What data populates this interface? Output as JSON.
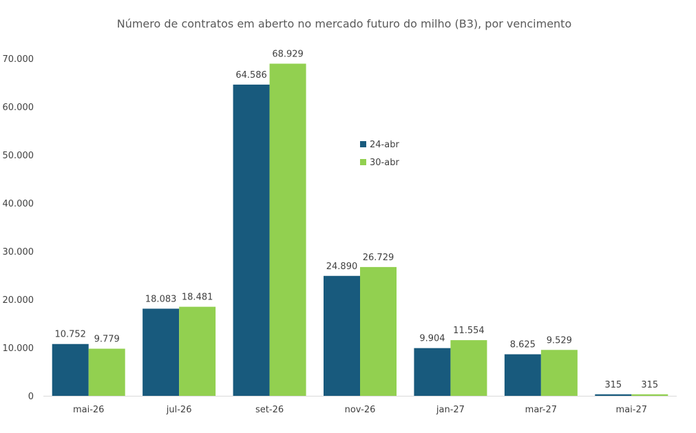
{
  "chart_data": {
    "type": "bar",
    "title": "Número de contratos em aberto no mercado futuro do milho (B3), por vencimento",
    "xlabel": "",
    "ylabel": "",
    "categories": [
      "mai-26",
      "jul-26",
      "set-26",
      "nov-26",
      "jan-27",
      "mar-27",
      "mai-27"
    ],
    "series": [
      {
        "name": "24-abr",
        "color": "#185a7d",
        "values": [
          10752,
          18083,
          64586,
          24890,
          9904,
          8625,
          315
        ],
        "labels": [
          "10.752",
          "18.083",
          "64.586",
          "24.890",
          "9.904",
          "8.625",
          "315"
        ]
      },
      {
        "name": "30-abr",
        "color": "#92d050",
        "values": [
          9779,
          18481,
          68929,
          26729,
          11554,
          9529,
          315
        ],
        "labels": [
          "9.779",
          "18.481",
          "68.929",
          "26.729",
          "11.554",
          "9.529",
          "315"
        ]
      }
    ],
    "ylim": [
      0,
      70000
    ],
    "yticks": [
      0,
      10000,
      20000,
      30000,
      40000,
      50000,
      60000,
      70000
    ],
    "ytick_labels": [
      "0",
      "10.000",
      "20.000",
      "30.000",
      "40.000",
      "50.000",
      "60.000",
      "70.000"
    ],
    "grid": false,
    "legend_position": "center"
  }
}
